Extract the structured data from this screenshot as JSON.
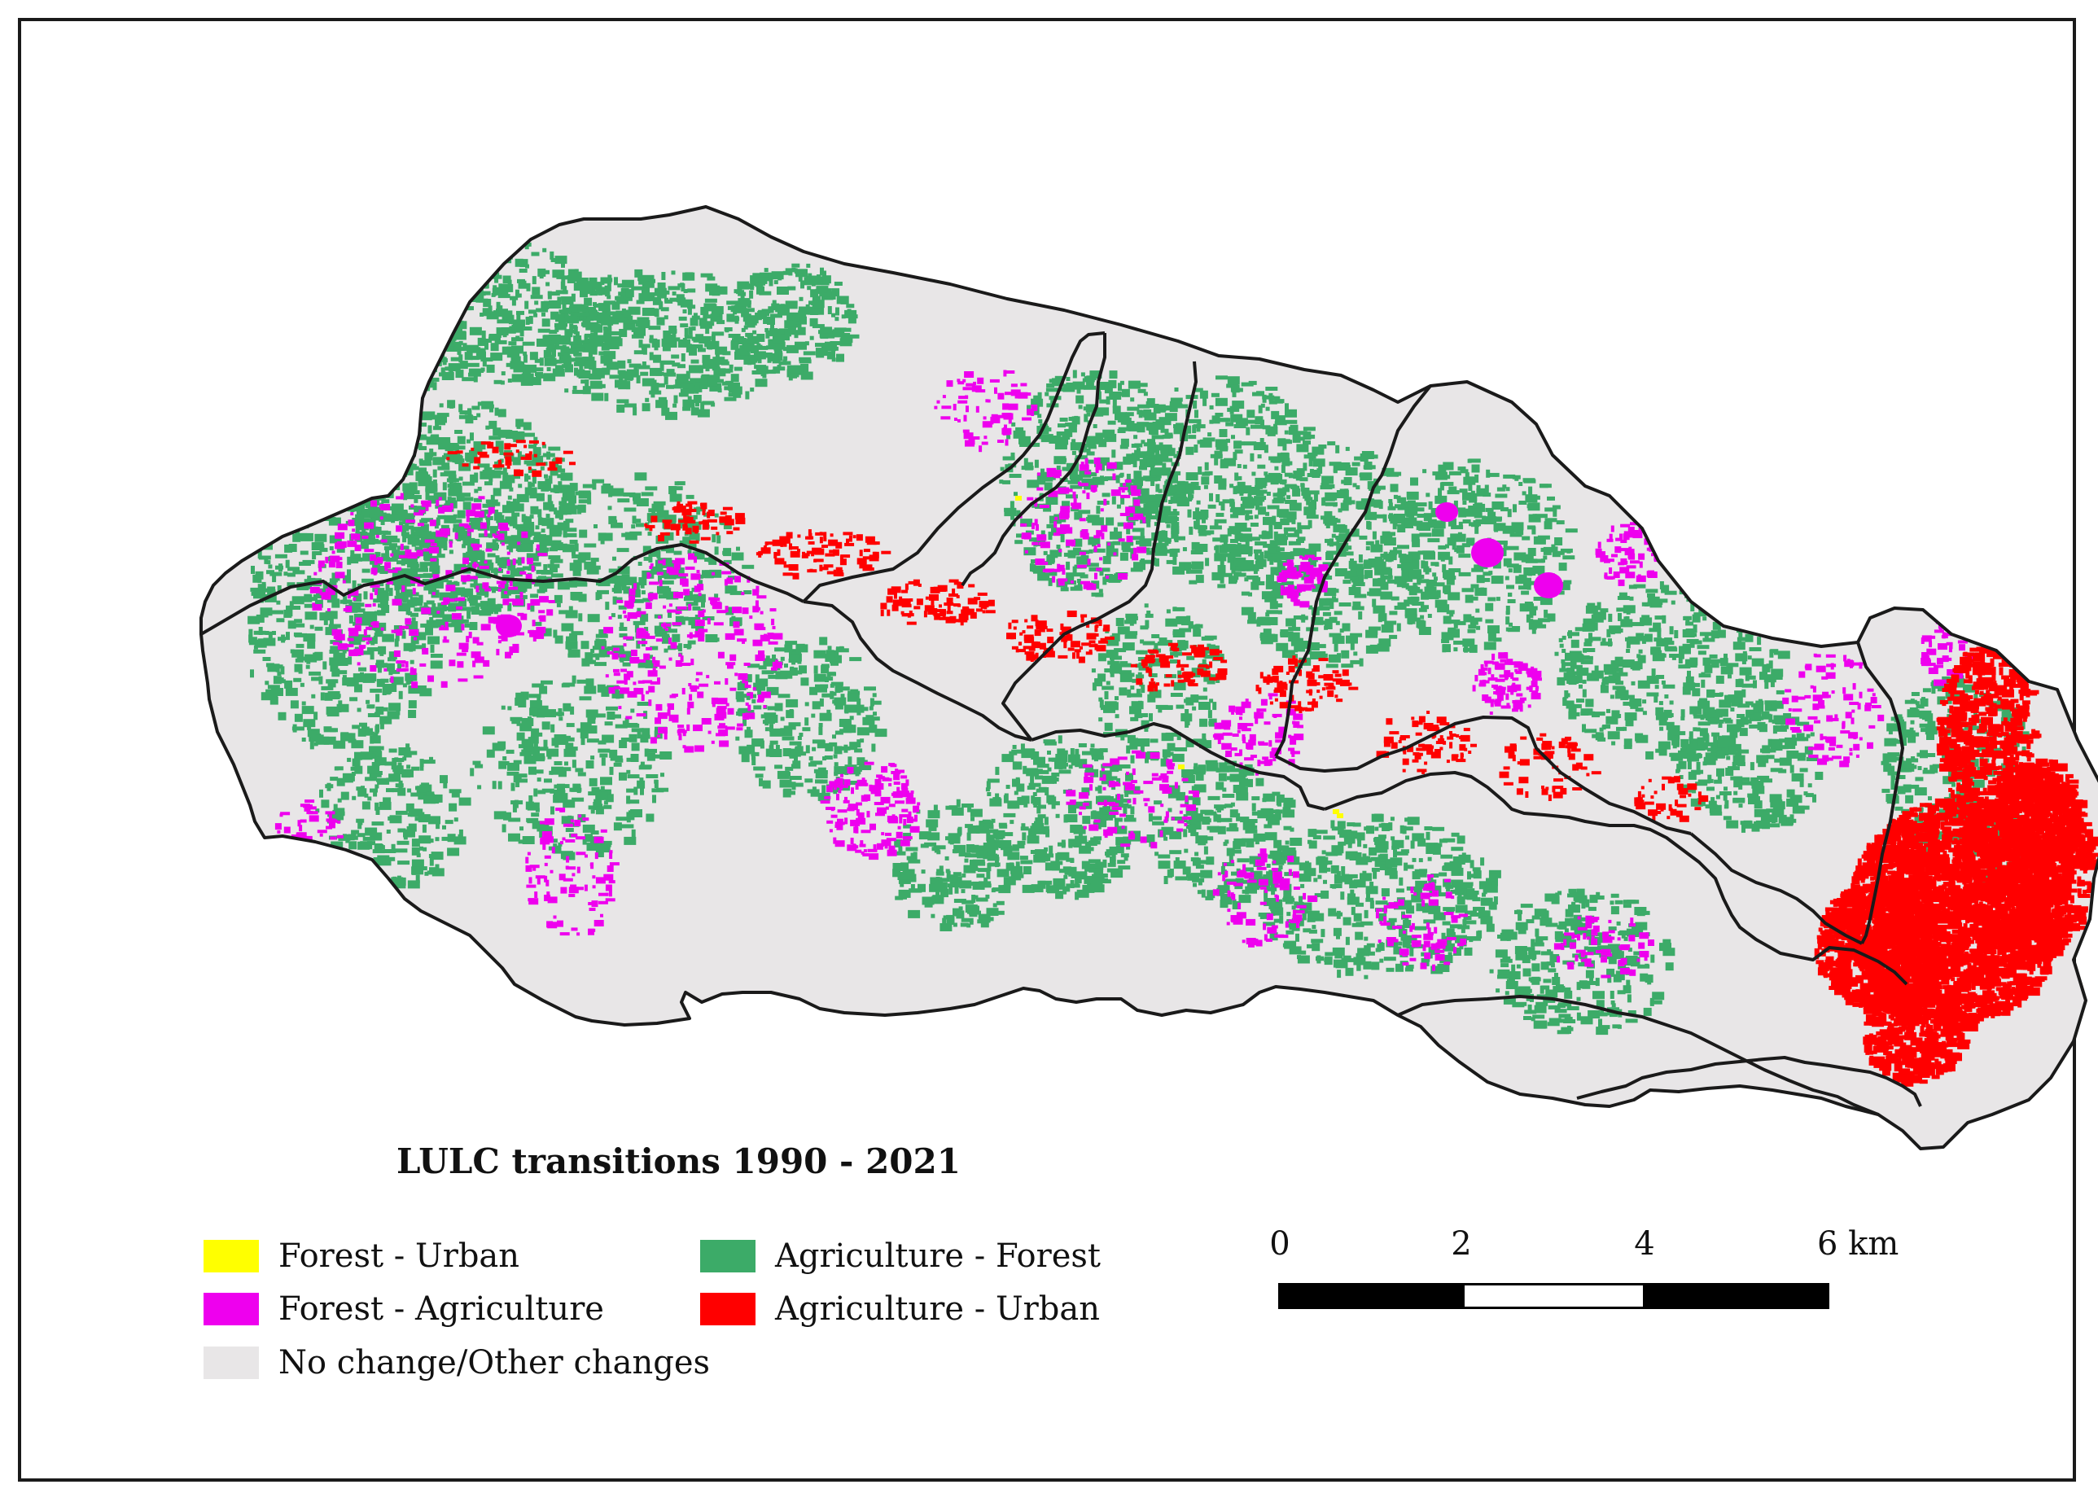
{
  "map": {
    "legend_title": "LULC transitions 1990 - 2021",
    "classes": [
      {
        "label": "Forest - Urban",
        "color": "#ffff00"
      },
      {
        "label": "Forest - Agriculture",
        "color": "#ee00ee"
      },
      {
        "label": "No change/Other changes",
        "color": "#e8e6e7"
      },
      {
        "label": "Agriculture  - Forest",
        "color": "#3cab68"
      },
      {
        "label": "Agriculture - Urban",
        "color": "#ff0000"
      }
    ],
    "boundary_color": "#1a1a1a",
    "scalebar": {
      "ticks": [
        "0",
        "2",
        "4",
        "6 km"
      ],
      "segment_fills": [
        "black",
        "white",
        "black"
      ]
    }
  }
}
